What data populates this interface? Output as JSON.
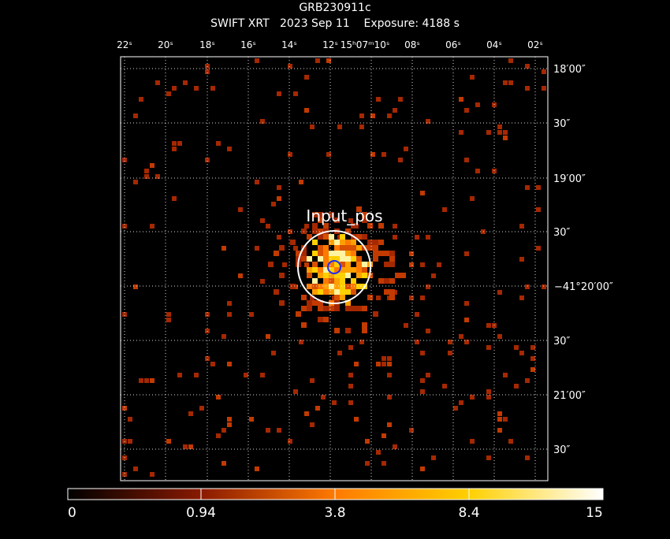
{
  "header": {
    "title": "GRB230911c",
    "subtitle": "SWIFT XRT   2023 Sep 11    Exposure: 4188 s"
  },
  "ra_labels": [
    "22ˢ",
    "20ˢ",
    "18ˢ",
    "16ˢ",
    "14ˢ",
    "12ˢ",
    "15ʰ07ᵐ10ˢ",
    "08ˢ",
    "06ˢ",
    "04ˢ",
    "02ˢ"
  ],
  "dec_labels": [
    "18′00″",
    "30″",
    "19′00″",
    "30″",
    "−41°20′00″",
    "30″",
    "21′00″",
    "30″"
  ],
  "source_label": "Input_pos",
  "colorbar": {
    "labels": [
      "0",
      "0.94",
      "3.8",
      "8.4",
      "15"
    ]
  }
}
